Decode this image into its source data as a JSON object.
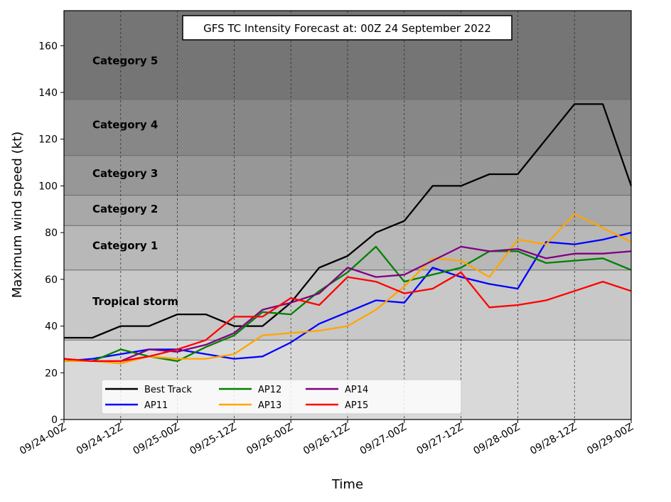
{
  "chart_data": {
    "type": "line",
    "title": "GFS TC Intensity Forecast at: 00Z 24 September 2022",
    "xlabel": "Time",
    "ylabel": "Maximum wind speed (kt)",
    "ylim": [
      0,
      175
    ],
    "xlim": [
      0,
      120
    ],
    "y_ticks": [
      0,
      20,
      40,
      60,
      80,
      100,
      120,
      140,
      160
    ],
    "x_ticks": [
      0,
      12,
      24,
      36,
      48,
      60,
      72,
      84,
      96,
      108,
      120
    ],
    "x_tick_labels": [
      "09/24-00Z",
      "09/24-12Z",
      "09/25-00Z",
      "09/25-12Z",
      "09/26-00Z",
      "09/26-12Z",
      "09/27-00Z",
      "09/27-12Z",
      "09/28-00Z",
      "09/28-12Z",
      "09/29-00Z"
    ],
    "grid": "vertical dashed at x ticks",
    "legend_position": "lower-left",
    "categories": [
      {
        "label": "Tropical storm",
        "min": 34,
        "max": 64,
        "color": "#c8c8c8"
      },
      {
        "label": "Category 1",
        "min": 64,
        "max": 83,
        "color": "#b8b8b8"
      },
      {
        "label": "Category 2",
        "min": 83,
        "max": 96,
        "color": "#a8a8a8"
      },
      {
        "label": "Category 3",
        "min": 96,
        "max": 113,
        "color": "#979797"
      },
      {
        "label": "Category 4",
        "min": 113,
        "max": 137,
        "color": "#878787"
      },
      {
        "label": "Category 5",
        "min": 137,
        "max": 175,
        "color": "#757575"
      }
    ],
    "below_category_color": "#d9d9d9",
    "x": [
      0,
      6,
      12,
      18,
      24,
      30,
      36,
      42,
      48,
      54,
      60,
      66,
      72,
      78,
      84,
      90,
      96,
      102,
      108,
      114,
      120
    ],
    "series": [
      {
        "name": "Best Track",
        "color": "#000000",
        "values": [
          35,
          35,
          40,
          40,
          45,
          45,
          40,
          40,
          50,
          65,
          70,
          80,
          85,
          100,
          100,
          105,
          105,
          120,
          135,
          135,
          100
        ]
      },
      {
        "name": "AP11",
        "color": "#0000ff",
        "values": [
          25,
          26,
          28,
          30,
          30,
          28,
          26,
          27,
          33,
          41,
          46,
          51,
          50,
          65,
          61,
          58,
          56,
          76,
          75,
          77,
          80
        ]
      },
      {
        "name": "AP12",
        "color": "#008000",
        "values": [
          25,
          25,
          30,
          27,
          25,
          31,
          36,
          46,
          45,
          55,
          63,
          74,
          59,
          62,
          65,
          72,
          72,
          67,
          68,
          69,
          64
        ]
      },
      {
        "name": "AP13",
        "color": "#ffa500",
        "values": [
          25,
          25,
          24,
          27,
          26,
          26,
          28,
          36,
          37,
          38,
          40,
          47,
          57,
          69,
          68,
          61,
          77,
          75,
          88,
          82,
          76
        ]
      },
      {
        "name": "AP14",
        "color": "#800080",
        "values": [
          26,
          25,
          25,
          30,
          29,
          32,
          37,
          47,
          50,
          54,
          65,
          61,
          62,
          68,
          74,
          72,
          73,
          69,
          71,
          71,
          72
        ]
      },
      {
        "name": "AP15",
        "color": "#ff0000",
        "values": [
          26,
          25,
          25,
          27,
          30,
          34,
          44,
          44,
          52,
          49,
          61,
          59,
          54,
          56,
          63,
          48,
          49,
          51,
          55,
          59,
          55
        ]
      }
    ]
  }
}
